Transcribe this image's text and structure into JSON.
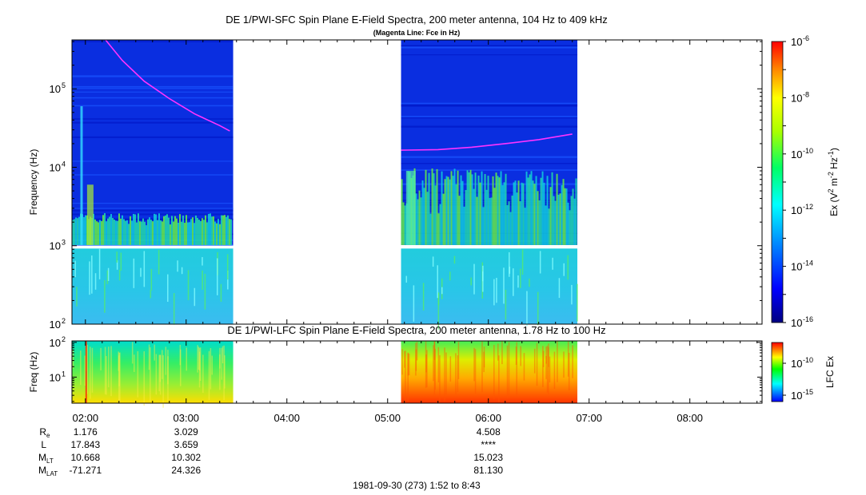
{
  "chart_data": [
    {
      "type": "heatmap",
      "title": "DE 1/PWI-SFC  Spin Plane E-Field Spectra, 200 meter antenna, 104 Hz to 409 kHz",
      "subtitle": "(Magenta Line: Fce in Hz)",
      "ylabel": "Frequency (Hz)",
      "yscale": "log",
      "ylim": [
        100,
        420000
      ],
      "y_ticks": [
        {
          "base": "10",
          "exp": "2"
        },
        {
          "base": "10",
          "exp": "3"
        },
        {
          "base": "10",
          "exp": "4"
        },
        {
          "base": "10",
          "exp": "5"
        }
      ],
      "data_intervals": [
        {
          "start": "01:52",
          "end": "03:28"
        },
        {
          "start": "05:08",
          "end": "06:53"
        }
      ],
      "gap_hz": [
        920,
        1020
      ],
      "fce_line": {
        "color": "#ff33ff",
        "segments": [
          [
            [
              "02:12",
              420000
            ],
            [
              "02:22",
              230000
            ],
            [
              "02:35",
              125000
            ],
            [
              "02:50",
              75000
            ],
            [
              "03:05",
              48000
            ],
            [
              "03:20",
              34000
            ],
            [
              "03:26",
              29000
            ]
          ],
          [
            [
              "05:08",
              16500
            ],
            [
              "05:30",
              16800
            ],
            [
              "05:50",
              18000
            ],
            [
              "06:10",
              20000
            ],
            [
              "06:30",
              22500
            ],
            [
              "06:50",
              26500
            ]
          ]
        ]
      },
      "colorbar": {
        "label_parts": [
          "Ex (V",
          "2",
          " m",
          "-2",
          " Hz",
          "-1",
          ")"
        ],
        "scale": "log",
        "range": [
          1e-16,
          1e-06
        ],
        "ticks": [
          {
            "base": "10",
            "exp": "-6"
          },
          {
            "base": "10",
            "exp": "-8"
          },
          {
            "base": "10",
            "exp": "-10"
          },
          {
            "base": "10",
            "exp": "-12"
          },
          {
            "base": "10",
            "exp": "-14"
          },
          {
            "base": "10",
            "exp": "-16"
          }
        ]
      }
    },
    {
      "type": "heatmap",
      "title": "DE 1/PWI-LFC  Spin Plane E-Field Spectra, 200 meter antenna, 1.78 Hz to 100 Hz",
      "ylabel": "Freq (Hz)",
      "yscale": "log",
      "ylim": [
        1.78,
        110
      ],
      "y_ticks": [
        {
          "base": "10",
          "exp": "1"
        },
        {
          "base": "10",
          "exp": "2"
        }
      ],
      "data_intervals": [
        {
          "start": "01:52",
          "end": "03:28"
        },
        {
          "start": "05:08",
          "end": "06:53"
        }
      ],
      "colorbar": {
        "label": "LFC Ex",
        "ticks": [
          {
            "base": "10",
            "exp": "-10"
          },
          {
            "base": "10",
            "exp": "-15"
          }
        ]
      }
    }
  ],
  "x_axis": {
    "range": [
      "01:52",
      "08:43"
    ],
    "ticks": [
      "02:00",
      "03:00",
      "04:00",
      "05:00",
      "06:00",
      "07:00",
      "08:00"
    ]
  },
  "ephemeris": {
    "rows": [
      {
        "label": "R",
        "sub": "e",
        "values": [
          "1.176",
          "3.029",
          "",
          "",
          "4.508",
          "",
          ""
        ]
      },
      {
        "label": "L",
        "sub": "",
        "values": [
          "17.843",
          "3.659",
          "",
          "",
          "****",
          "",
          ""
        ]
      },
      {
        "label": "M",
        "sub": "LT",
        "values": [
          "10.668",
          "10.302",
          "",
          "",
          "15.023",
          "",
          ""
        ]
      },
      {
        "label": "M",
        "sub": "LAT",
        "values": [
          "-71.271",
          "24.326",
          "",
          "",
          "81.130",
          "",
          ""
        ]
      }
    ]
  },
  "footer": "1981-09-30 (273) 1:52 to 8:43"
}
